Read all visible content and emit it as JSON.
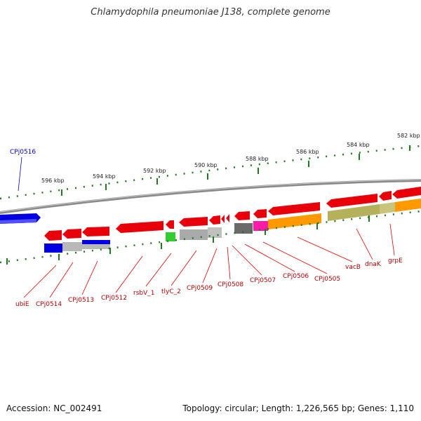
{
  "title": "Chlamydophila pneumoniae J138, complete genome",
  "footer": {
    "accession": "Accession: NC_002491",
    "summary": "Topology: circular; Length: 1,226,565 bp; Genes: 1,110"
  },
  "colors": {
    "backbone": "#808080",
    "ticks": "#1f7a1f",
    "gene_red": "#e8000b",
    "gene_blue": "#0000e0",
    "label_red": "#b00000",
    "label_blue": "#0000b0"
  },
  "ruler_ticks": [
    "582 kbp",
    "584 kbp",
    "586 kbp",
    "588 kbp",
    "590 kbp",
    "592 kbp",
    "594 kbp",
    "596 kbp"
  ],
  "gene_labels": [
    "CPj0516",
    "ubiE",
    "CPj0514",
    "CPj0513",
    "CPj0512",
    "rsbV_1",
    "tlyC_2",
    "CPj0509",
    "CPj0508",
    "CPj0507",
    "CPj0506",
    "CPj0505",
    "vacB",
    "dnaK",
    "grpE"
  ]
}
